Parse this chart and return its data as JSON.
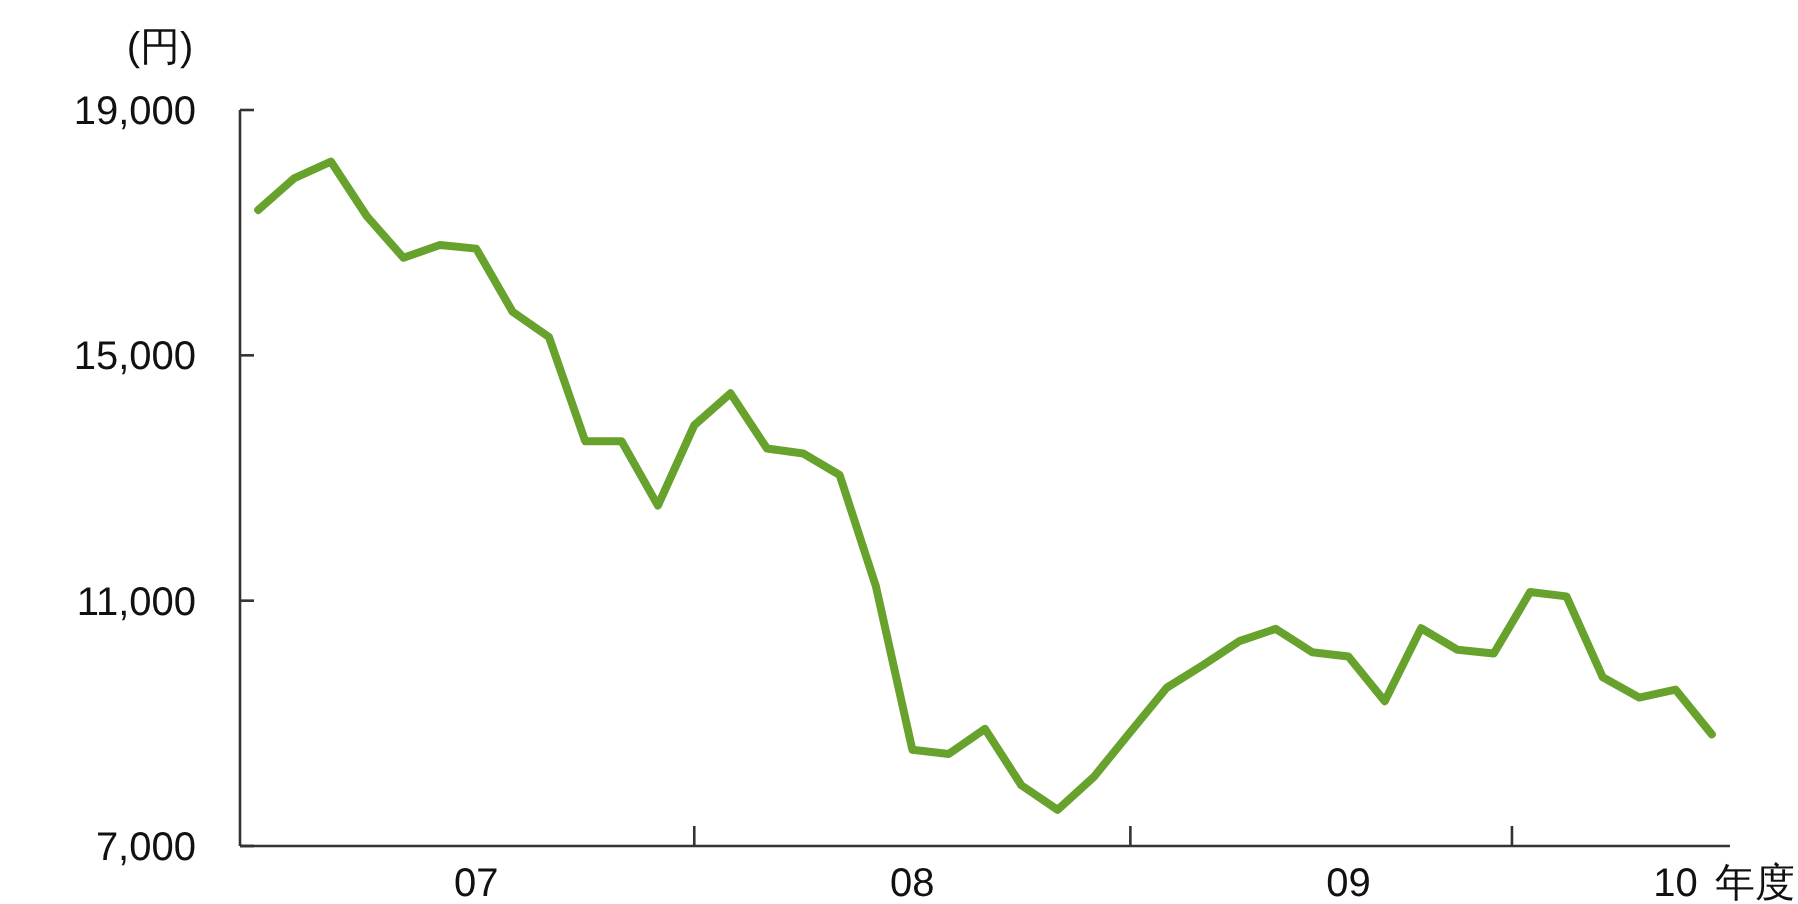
{
  "chart_data": {
    "type": "line",
    "ylabel": "(円)",
    "xlabel": "年度",
    "categories": [
      null,
      null,
      null,
      null,
      null,
      null,
      "07",
      null,
      null,
      null,
      null,
      null,
      null,
      null,
      null,
      null,
      null,
      null,
      "08",
      null,
      null,
      null,
      null,
      null,
      null,
      null,
      null,
      null,
      null,
      null,
      "09",
      null,
      null,
      null,
      null,
      null,
      null,
      null,
      null,
      "10",
      null
    ],
    "series": [
      {
        "color": "#66a22c",
        "values": [
          17370,
          17890,
          18160,
          17260,
          16590,
          16800,
          16740,
          15710,
          15300,
          13600,
          13600,
          12550,
          13860,
          14380,
          13480,
          13400,
          13050,
          11230,
          8570,
          8500,
          8910,
          7990,
          7590,
          8130,
          8860,
          9580,
          9950,
          10340,
          10540,
          10160,
          10090,
          9360,
          10550,
          10200,
          10140,
          11140,
          11070,
          9750,
          9420,
          9550,
          8820
        ]
      }
    ],
    "ylim": [
      7000,
      19000
    ],
    "yticks": [
      {
        "value": 7000,
        "label": "7,000"
      },
      {
        "value": 11000,
        "label": "11,000"
      },
      {
        "value": 15000,
        "label": "15,000"
      },
      {
        "value": 19000,
        "label": "19,000"
      }
    ],
    "marker": "none",
    "line_style": "solid"
  }
}
